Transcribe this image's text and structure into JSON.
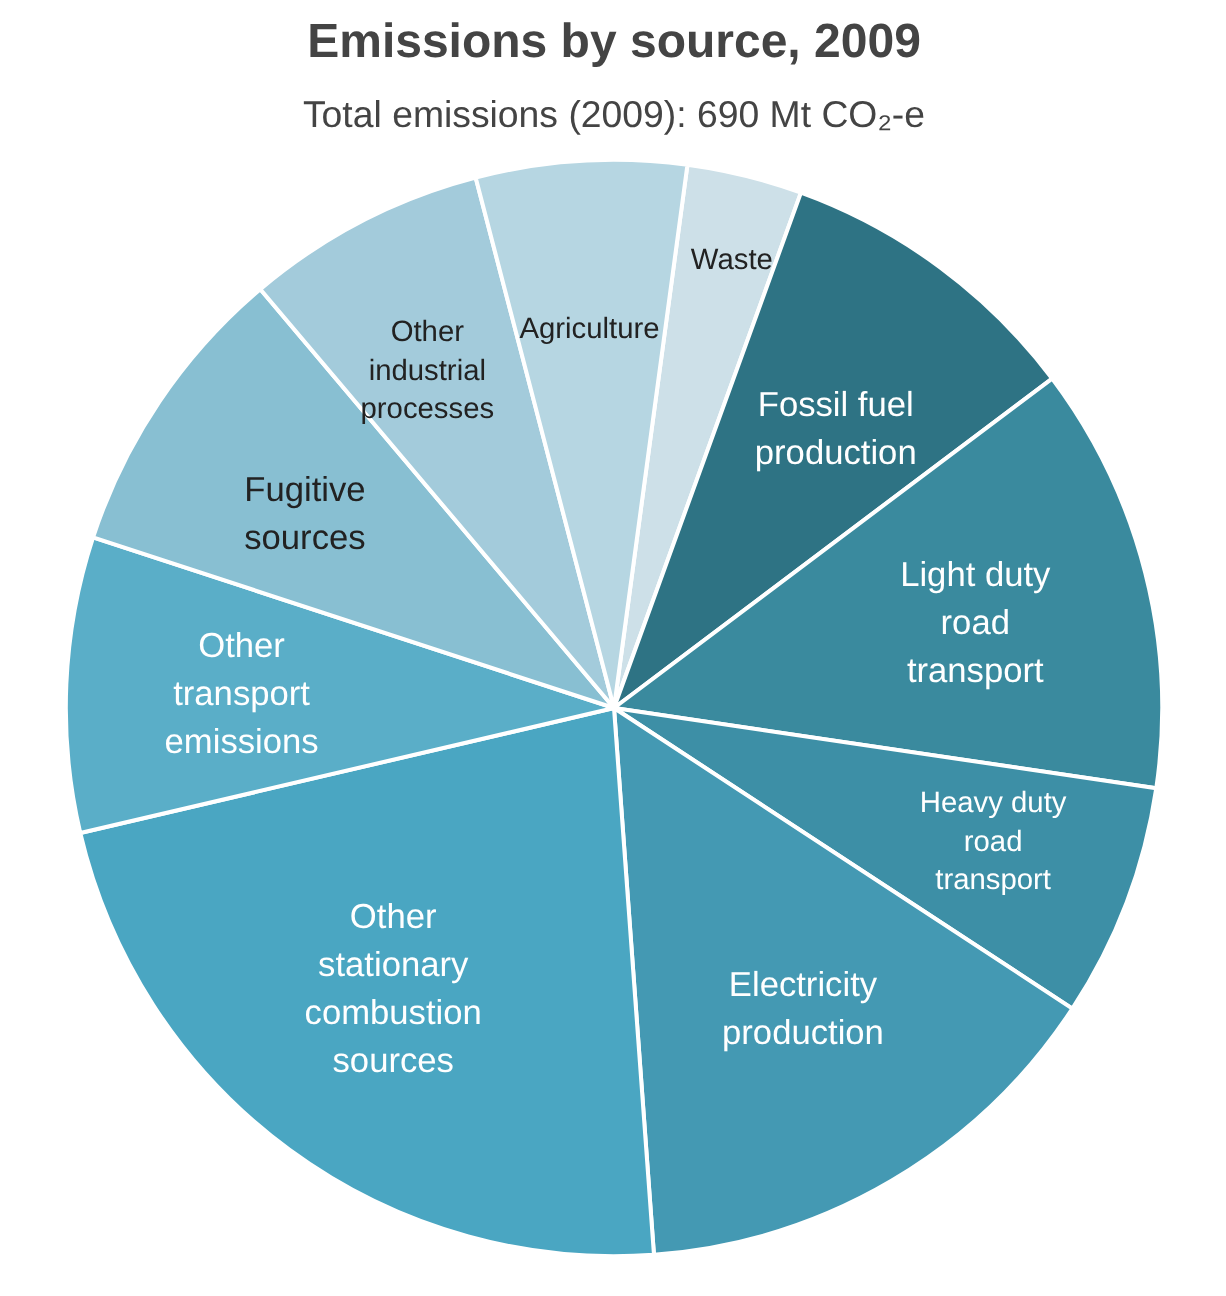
{
  "chart_data": {
    "type": "pie",
    "title": "Emissions by source, 2009",
    "subtitle": "Total emissions (2009): 690 Mt CO₂-e",
    "categories": [
      "Waste",
      "Fossil fuel production",
      "Light duty road transport",
      "Heavy duty road transport",
      "Electricity production",
      "Other stationary combustion sources",
      "Other transport emissions",
      "Fugitive sources",
      "Other industrial processes",
      "Agriculture"
    ],
    "values": [
      3.4,
      9.2,
      12.6,
      6.9,
      14.6,
      22.5,
      8.7,
      8.8,
      7.1,
      6.2
    ],
    "colors": [
      "#cde0e8",
      "#2e7384",
      "#3a8a9e",
      "#3d8fa6",
      "#4499b3",
      "#4aa6c2",
      "#5aaec8",
      "#88bfd2",
      "#a3cbdb",
      "#b6d6e2"
    ]
  }
}
